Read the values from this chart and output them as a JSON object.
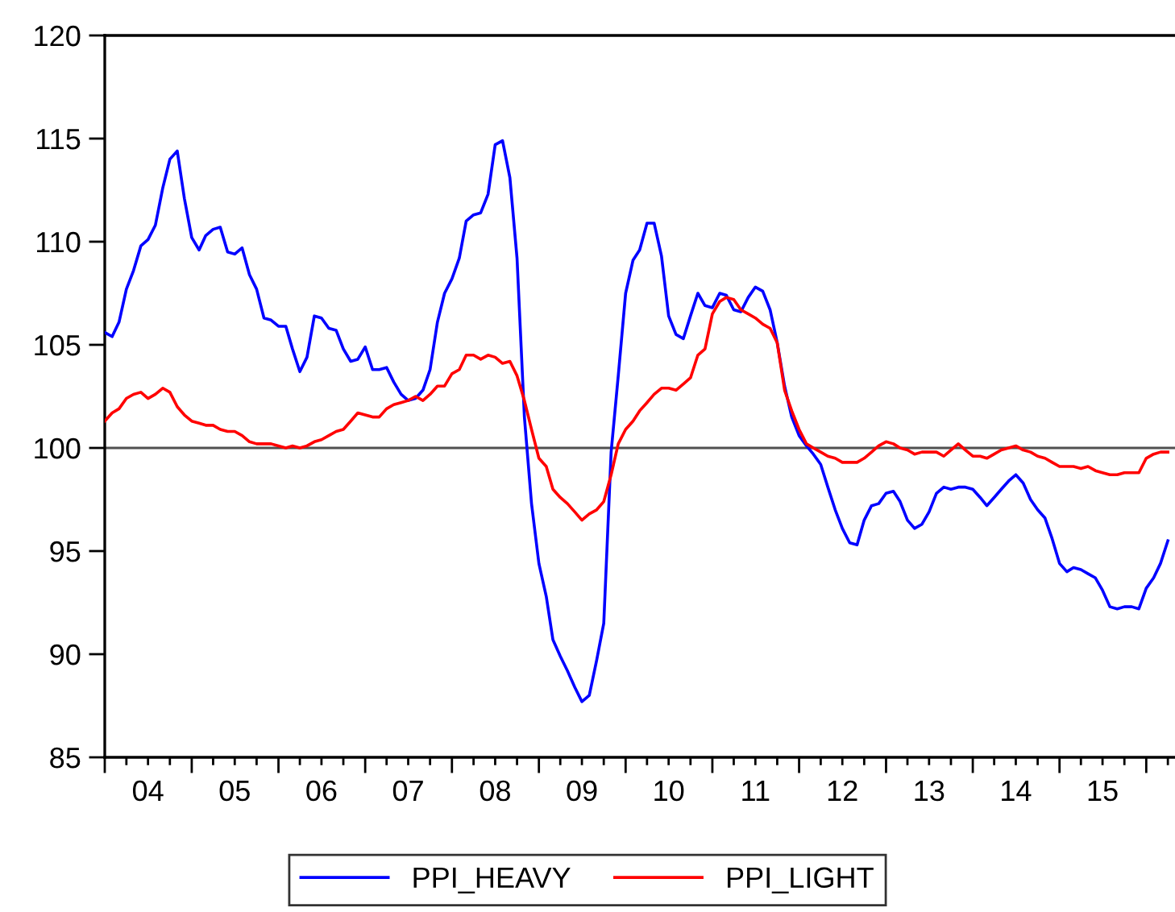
{
  "chart_data": {
    "type": "line",
    "x": [
      "2004-01",
      "2004-02",
      "2004-03",
      "2004-04",
      "2004-05",
      "2004-06",
      "2004-07",
      "2004-08",
      "2004-09",
      "2004-10",
      "2004-11",
      "2004-12",
      "2005-01",
      "2005-02",
      "2005-03",
      "2005-04",
      "2005-05",
      "2005-06",
      "2005-07",
      "2005-08",
      "2005-09",
      "2005-10",
      "2005-11",
      "2005-12",
      "2006-01",
      "2006-02",
      "2006-03",
      "2006-04",
      "2006-05",
      "2006-06",
      "2006-07",
      "2006-08",
      "2006-09",
      "2006-10",
      "2006-11",
      "2006-12",
      "2007-01",
      "2007-02",
      "2007-03",
      "2007-04",
      "2007-05",
      "2007-06",
      "2007-07",
      "2007-08",
      "2007-09",
      "2007-10",
      "2007-11",
      "2007-12",
      "2008-01",
      "2008-02",
      "2008-03",
      "2008-04",
      "2008-05",
      "2008-06",
      "2008-07",
      "2008-08",
      "2008-09",
      "2008-10",
      "2008-11",
      "2008-12",
      "2009-01",
      "2009-02",
      "2009-03",
      "2009-04",
      "2009-05",
      "2009-06",
      "2009-07",
      "2009-08",
      "2009-09",
      "2009-10",
      "2009-11",
      "2009-12",
      "2010-01",
      "2010-02",
      "2010-03",
      "2010-04",
      "2010-05",
      "2010-06",
      "2010-07",
      "2010-08",
      "2010-09",
      "2010-10",
      "2010-11",
      "2010-12",
      "2011-01",
      "2011-02",
      "2011-03",
      "2011-04",
      "2011-05",
      "2011-06",
      "2011-07",
      "2011-08",
      "2011-09",
      "2011-10",
      "2011-11",
      "2011-12",
      "2012-01",
      "2012-02",
      "2012-03",
      "2012-04",
      "2012-05",
      "2012-06",
      "2012-07",
      "2012-08",
      "2012-09",
      "2012-10",
      "2012-11",
      "2012-12",
      "2013-01",
      "2013-02",
      "2013-03",
      "2013-04",
      "2013-05",
      "2013-06",
      "2013-07",
      "2013-08",
      "2013-09",
      "2013-10",
      "2013-11",
      "2013-12",
      "2014-01",
      "2014-02",
      "2014-03",
      "2014-04",
      "2014-05",
      "2014-06",
      "2014-07",
      "2014-08",
      "2014-09",
      "2014-10",
      "2014-11",
      "2014-12",
      "2015-01",
      "2015-02",
      "2015-03",
      "2015-04",
      "2015-05",
      "2015-06",
      "2015-07",
      "2015-08",
      "2015-09",
      "2015-10",
      "2015-11",
      "2015-12",
      "2016-01",
      "2016-02",
      "2016-03",
      "2016-04"
    ],
    "series": [
      {
        "name": "PPI_HEAVY",
        "color": "#0000ff",
        "values": [
          105.6,
          105.4,
          106.1,
          107.7,
          108.6,
          109.8,
          110.1,
          110.8,
          112.6,
          114.0,
          114.4,
          112.1,
          110.2,
          109.6,
          110.3,
          110.6,
          110.7,
          109.5,
          109.4,
          109.7,
          108.4,
          107.7,
          106.3,
          106.2,
          105.9,
          105.9,
          104.8,
          103.7,
          104.4,
          106.4,
          106.3,
          105.8,
          105.7,
          104.8,
          104.2,
          104.3,
          104.9,
          103.8,
          103.8,
          103.9,
          103.2,
          102.6,
          102.3,
          102.4,
          102.8,
          103.8,
          106.1,
          107.5,
          108.2,
          109.2,
          111.0,
          111.3,
          111.4,
          112.3,
          114.7,
          114.9,
          113.1,
          109.2,
          101.5,
          97.3,
          94.4,
          92.8,
          90.7,
          89.9,
          89.2,
          88.4,
          87.7,
          88.0,
          89.7,
          91.5,
          99.8,
          103.5,
          107.5,
          109.1,
          109.6,
          110.9,
          110.9,
          109.3,
          106.4,
          105.5,
          105.3,
          106.4,
          107.5,
          106.9,
          106.8,
          107.5,
          107.4,
          106.7,
          106.6,
          107.3,
          107.8,
          107.6,
          106.7,
          105.1,
          103.0,
          101.5,
          100.6,
          100.1,
          99.7,
          99.2,
          98.1,
          97.0,
          96.1,
          95.4,
          95.3,
          96.5,
          97.2,
          97.3,
          97.8,
          97.9,
          97.4,
          96.5,
          96.1,
          96.3,
          96.9,
          97.8,
          98.1,
          98.0,
          98.1,
          98.1,
          98.0,
          97.6,
          97.2,
          97.6,
          98.0,
          98.4,
          98.7,
          98.3,
          97.5,
          97.0,
          96.6,
          95.6,
          94.4,
          94.0,
          94.2,
          94.1,
          93.9,
          93.7,
          93.1,
          92.3,
          92.2,
          92.3,
          92.3,
          92.2,
          93.2,
          93.7,
          94.4,
          95.5
        ]
      },
      {
        "name": "PPI_LIGHT",
        "color": "#ff0000",
        "values": [
          101.3,
          101.7,
          101.9,
          102.4,
          102.6,
          102.7,
          102.4,
          102.6,
          102.9,
          102.7,
          102.0,
          101.6,
          101.3,
          101.2,
          101.1,
          101.1,
          100.9,
          100.8,
          100.8,
          100.6,
          100.3,
          100.2,
          100.2,
          100.2,
          100.1,
          100.0,
          100.1,
          100.0,
          100.1,
          100.3,
          100.4,
          100.6,
          100.8,
          100.9,
          101.3,
          101.7,
          101.6,
          101.5,
          101.5,
          101.9,
          102.1,
          102.2,
          102.3,
          102.5,
          102.3,
          102.6,
          103.0,
          103.0,
          103.6,
          103.8,
          104.5,
          104.5,
          104.3,
          104.5,
          104.4,
          104.1,
          104.2,
          103.5,
          102.3,
          100.9,
          99.5,
          99.1,
          98.0,
          97.6,
          97.3,
          96.9,
          96.5,
          96.8,
          97.0,
          97.4,
          98.7,
          100.2,
          100.9,
          101.3,
          101.8,
          102.2,
          102.6,
          102.9,
          102.9,
          102.8,
          103.1,
          103.4,
          104.5,
          104.8,
          106.5,
          107.1,
          107.3,
          107.2,
          106.7,
          106.5,
          106.3,
          106.0,
          105.8,
          105.1,
          102.8,
          101.8,
          100.9,
          100.2,
          100.0,
          99.8,
          99.6,
          99.5,
          99.3,
          99.3,
          99.3,
          99.5,
          99.8,
          100.1,
          100.3,
          100.2,
          100.0,
          99.9,
          99.7,
          99.8,
          99.8,
          99.8,
          99.6,
          99.9,
          100.2,
          99.9,
          99.6,
          99.6,
          99.5,
          99.7,
          99.9,
          100.0,
          100.1,
          99.9,
          99.8,
          99.6,
          99.5,
          99.3,
          99.1,
          99.1,
          99.1,
          99.0,
          99.1,
          98.9,
          98.8,
          98.7,
          98.7,
          98.8,
          98.8,
          98.8,
          99.5,
          99.7,
          99.8,
          99.8
        ]
      }
    ],
    "xlim": [
      "2004-01",
      "2016-05"
    ],
    "xticks": [
      {
        "value": "2004-01",
        "label": null
      },
      {
        "value": "2004-07",
        "label": "04"
      },
      {
        "value": "2005-01",
        "label": null
      },
      {
        "value": "2005-07",
        "label": "05"
      },
      {
        "value": "2006-01",
        "label": null
      },
      {
        "value": "2006-07",
        "label": "06"
      },
      {
        "value": "2007-01",
        "label": null
      },
      {
        "value": "2007-07",
        "label": "07"
      },
      {
        "value": "2008-01",
        "label": null
      },
      {
        "value": "2008-07",
        "label": "08"
      },
      {
        "value": "2009-01",
        "label": null
      },
      {
        "value": "2009-07",
        "label": "09"
      },
      {
        "value": "2010-01",
        "label": null
      },
      {
        "value": "2010-07",
        "label": "10"
      },
      {
        "value": "2011-01",
        "label": null
      },
      {
        "value": "2011-07",
        "label": "11"
      },
      {
        "value": "2012-01",
        "label": null
      },
      {
        "value": "2012-07",
        "label": "12"
      },
      {
        "value": "2013-01",
        "label": null
      },
      {
        "value": "2013-07",
        "label": "13"
      },
      {
        "value": "2014-01",
        "label": null
      },
      {
        "value": "2014-07",
        "label": "14"
      },
      {
        "value": "2015-01",
        "label": null
      },
      {
        "value": "2015-07",
        "label": "15"
      },
      {
        "value": "2016-01",
        "label": null
      }
    ],
    "ylim": [
      85,
      120
    ],
    "yticks": [
      85,
      90,
      95,
      100,
      105,
      110,
      115,
      120
    ],
    "ref_lines": [
      {
        "axis": "y",
        "value": 100,
        "color": "#505050"
      }
    ],
    "legend": "bottom",
    "grid": false,
    "marker": "none",
    "line_style": "solid"
  }
}
